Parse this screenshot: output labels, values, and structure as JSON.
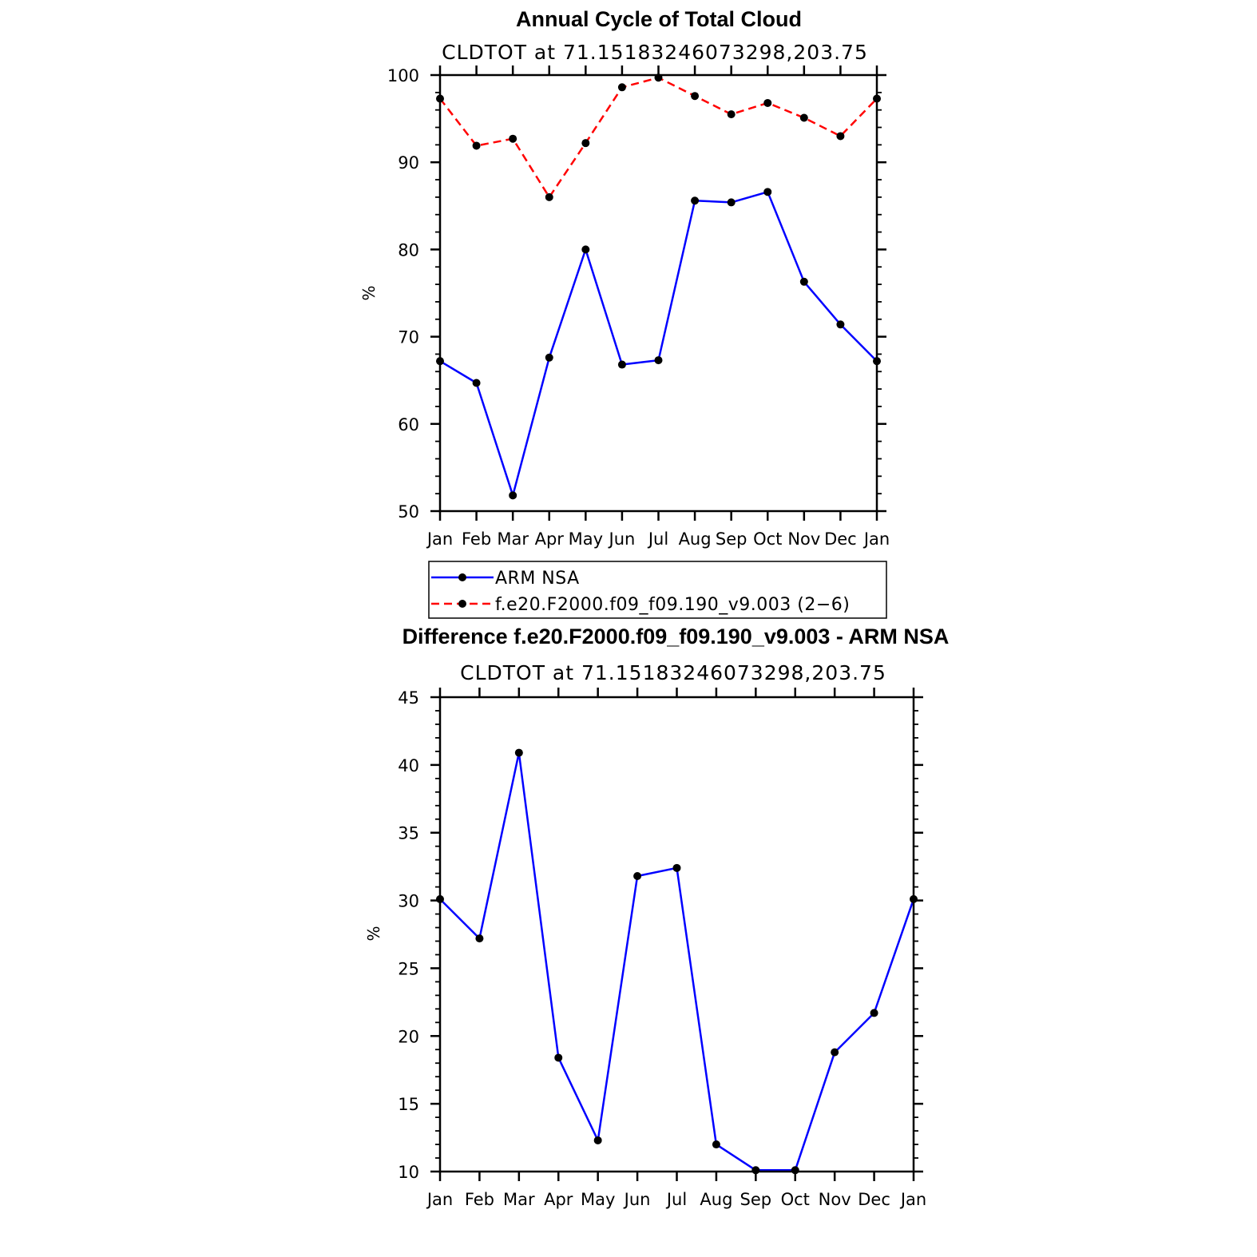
{
  "chart_data": [
    {
      "type": "line",
      "title": "Annual Cycle of Total Cloud",
      "subtitle": "CLDTOT at 71.15183246073298,203.75",
      "ylabel": "%",
      "xlabel": "",
      "categories": [
        "Jan",
        "Feb",
        "Mar",
        "Apr",
        "May",
        "Jun",
        "Jul",
        "Aug",
        "Sep",
        "Oct",
        "Nov",
        "Dec",
        "Jan"
      ],
      "ylim": [
        50,
        100
      ],
      "yticks": [
        "50",
        "60",
        "70",
        "80",
        "90",
        "100"
      ],
      "series": [
        {
          "name": "ARM NSA",
          "color": "#0000ff",
          "dash": "solid",
          "values": [
            67.2,
            64.7,
            51.8,
            67.6,
            80.0,
            66.8,
            67.3,
            85.6,
            85.4,
            86.6,
            76.3,
            71.4,
            67.2
          ]
        },
        {
          "name": "f.e20.F2000.f09_f09.190_v9.003 (2−6)",
          "color": "#ff0000",
          "dash": "dashed",
          "values": [
            97.3,
            91.9,
            92.7,
            86.0,
            92.2,
            98.6,
            99.7,
            97.6,
            95.5,
            96.8,
            95.1,
            93.0,
            97.3
          ]
        }
      ],
      "legend": {
        "position": "below",
        "entries": [
          "ARM NSA",
          "f.e20.F2000.f09_f09.190_v9.003 (2−6)"
        ]
      }
    },
    {
      "type": "line",
      "title": "Difference f.e20.F2000.f09_f09.190_v9.003 - ARM NSA",
      "subtitle": "CLDTOT at 71.15183246073298,203.75",
      "ylabel": "%",
      "xlabel": "",
      "categories": [
        "Jan",
        "Feb",
        "Mar",
        "Apr",
        "May",
        "Jun",
        "Jul",
        "Aug",
        "Sep",
        "Oct",
        "Nov",
        "Dec",
        "Jan"
      ],
      "ylim": [
        10,
        45
      ],
      "yticks": [
        "10",
        "15",
        "20",
        "25",
        "30",
        "35",
        "40",
        "45"
      ],
      "series": [
        {
          "name": "Difference",
          "color": "#0000ff",
          "dash": "solid",
          "values": [
            30.1,
            27.2,
            40.9,
            18.4,
            12.3,
            31.8,
            32.4,
            12.0,
            10.1,
            10.1,
            18.8,
            21.7,
            30.1
          ]
        }
      ]
    }
  ]
}
